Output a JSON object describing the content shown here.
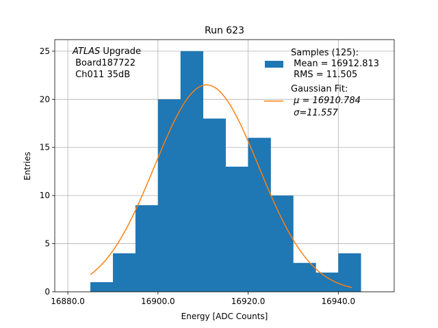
{
  "chart_data": {
    "type": "bar",
    "title": "Run 623",
    "xlabel": "Energy [ADC Counts]",
    "ylabel": "Entries",
    "xlim": [
      16877.1,
      16952.4
    ],
    "ylim": [
      0,
      26.2
    ],
    "xticks": [
      16880,
      16900,
      16920,
      16940
    ],
    "xtick_labels": [
      "16880.0",
      "16900.0",
      "16920.0",
      "16940.0"
    ],
    "yticks": [
      0,
      5,
      10,
      15,
      20,
      25
    ],
    "ytick_labels": [
      "0",
      "5",
      "10",
      "15",
      "20",
      "25"
    ],
    "grid": true,
    "histogram": {
      "bin_edges": [
        16885,
        16890,
        16895,
        16900,
        16905,
        16910,
        16915,
        16920,
        16925,
        16930,
        16935,
        16940,
        16945
      ],
      "counts": [
        1,
        4,
        9,
        20,
        25,
        18,
        13,
        16,
        10,
        3,
        2,
        4
      ],
      "color": "#1f77b4"
    },
    "fit_curve": {
      "type": "gaussian",
      "mu": 16910.784,
      "sigma": 11.557,
      "amplitude": 21.5,
      "x_range": [
        16885,
        16943
      ],
      "color": "#ff7f0e"
    },
    "annotation": {
      "line1_italic": "ATLAS",
      "line1_rest": " Upgrade",
      "line2": " Board187722",
      "line3": " Ch011 35dB"
    },
    "legend": {
      "position": "top-right",
      "entries": [
        {
          "label_lines": [
            "Samples (125):",
            " Mean = 16912.813",
            " RMS = 11.505"
          ],
          "color": "#1f77b4",
          "marker": "patch"
        },
        {
          "label_lines": [
            "Gaussian Fit:",
            " μ = 16910.784",
            " σ=11.557"
          ],
          "color": "#ff7f0e",
          "marker": "line"
        }
      ]
    }
  }
}
